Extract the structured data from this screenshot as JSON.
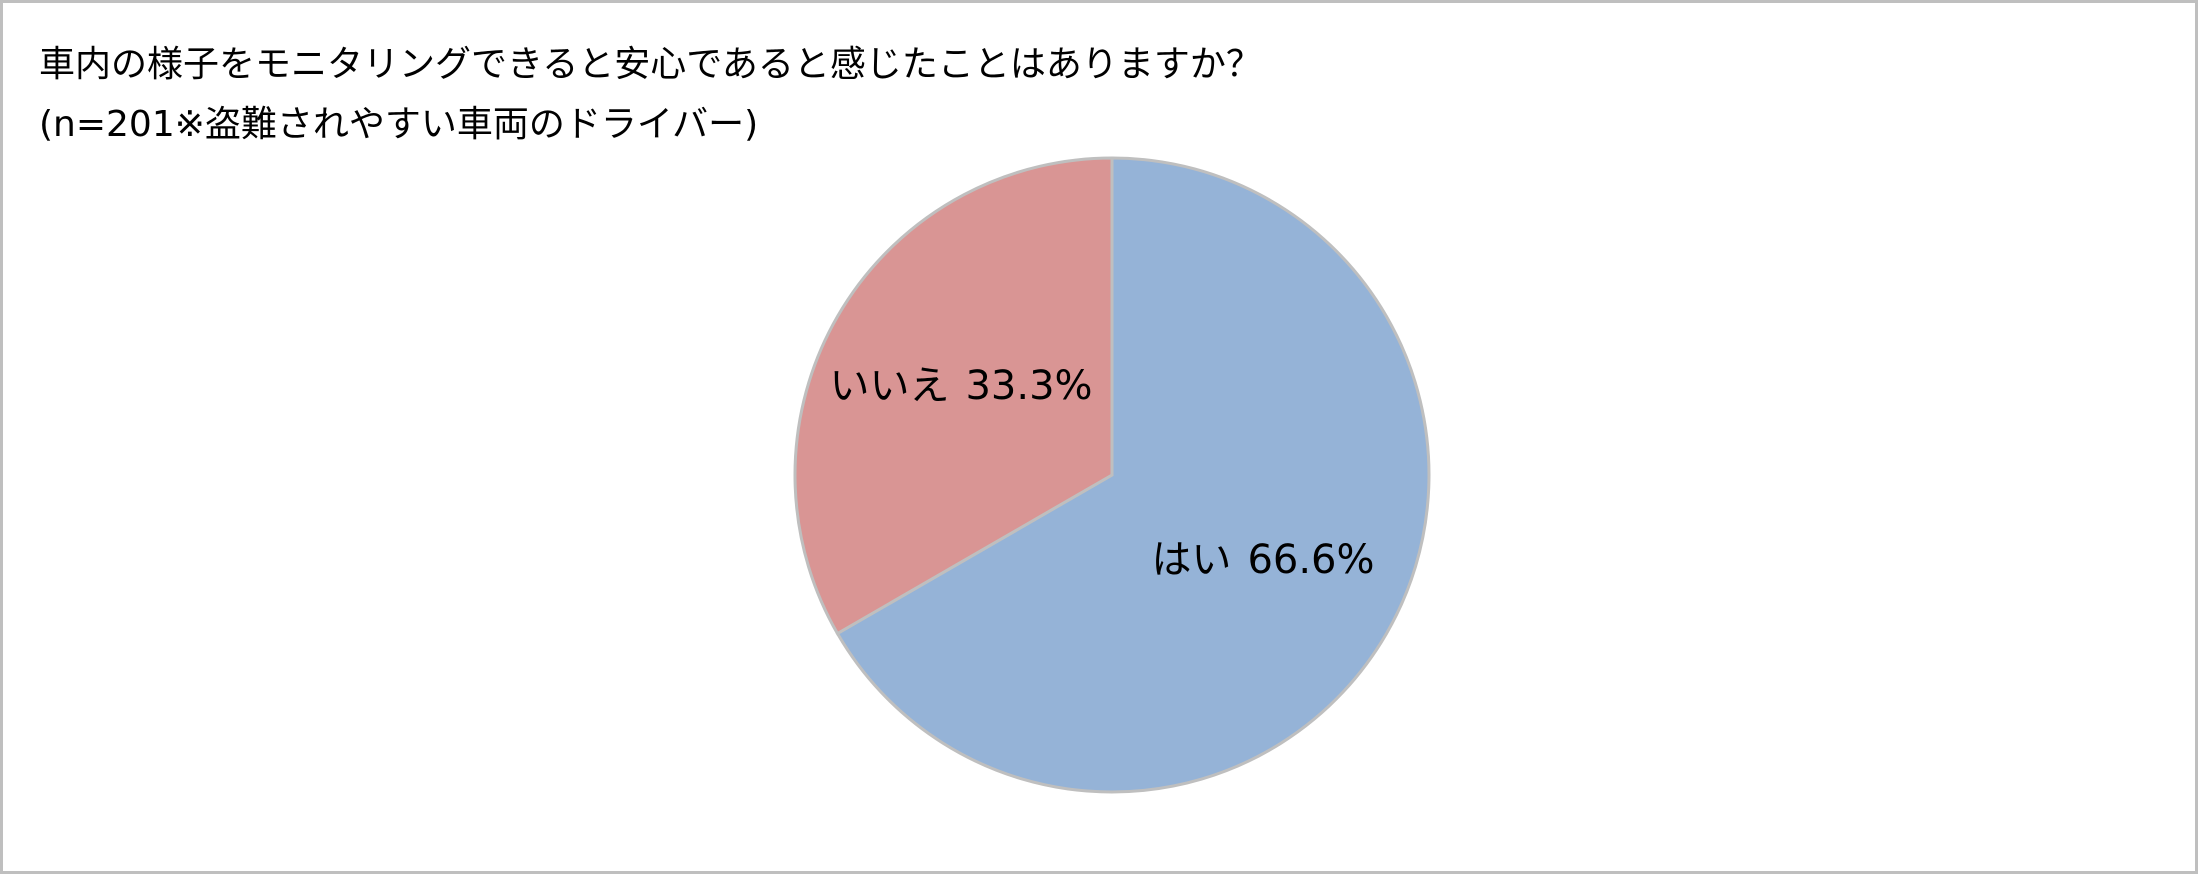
{
  "chart_data": {
    "type": "pie",
    "title": "車内の様子をモニタリングできると安心であると感じたことはありますか？",
    "subtitle": "(n=201※盗難されやすい車両のドライバー)",
    "categories": [
      "はい",
      "いいえ"
    ],
    "values": [
      66.6,
      33.3
    ],
    "value_labels": [
      "66.6%",
      "33.3%"
    ],
    "colors": [
      "#95b3d7",
      "#d99594"
    ]
  }
}
